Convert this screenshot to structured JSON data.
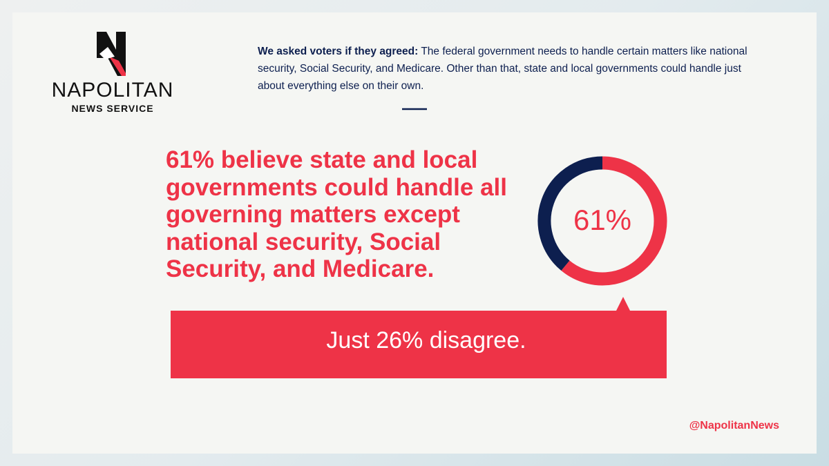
{
  "logo": {
    "name": "NAPOLITAN",
    "subname": "NEWS SERVICE"
  },
  "intro": {
    "lead": "We asked voters if they agreed:",
    "text": "The federal government needs to handle certain matters like national security, Social Security, and Medicare. Other than that, state and local governments could handle just about everything else on their own."
  },
  "headline": "61% believe state and local governments could handle all governing matters except national security, Social Security, and Medicare.",
  "chart_data": {
    "type": "donut",
    "values": [
      61,
      39
    ],
    "colors": [
      "#ee3347",
      "#0d1f4f"
    ],
    "center_label": "61%"
  },
  "callout": "Just 26% disagree.",
  "handle": "@NapolitanNews"
}
